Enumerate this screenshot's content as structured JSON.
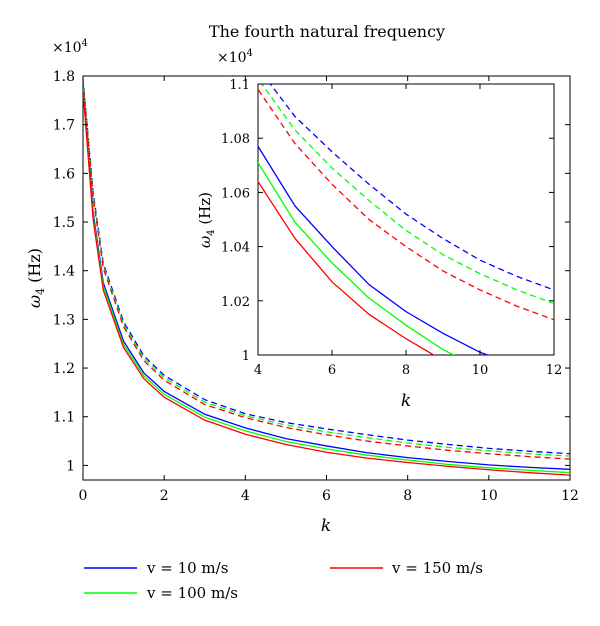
{
  "chart_data": {
    "type": "line",
    "title": "The fourth natural frequency",
    "scale_note": "×10^4",
    "xlabel": "k",
    "ylabel": "ω4 (Hz)",
    "xlim": [
      0,
      12
    ],
    "ylim": [
      0.97,
      1.8
    ],
    "xticks": [
      "0",
      "2",
      "4",
      "6",
      "8",
      "10",
      "12"
    ],
    "yticks": [
      "1",
      "1.1",
      "1.2",
      "1.3",
      "1.4",
      "1.5",
      "1.6",
      "1.7",
      "1.8"
    ],
    "grid": false,
    "legend": [
      {
        "label": "v = 10 m/s",
        "color": "#0000ff"
      },
      {
        "label": "v = 100 m/s",
        "color": "#00ff00"
      },
      {
        "label": "v = 150 m/s",
        "color": "#ff0000"
      }
    ],
    "series": [
      {
        "name": "v = 10 m/s",
        "color": "#0000ff",
        "style": "solid",
        "x": [
          0,
          0.25,
          0.5,
          1,
          1.5,
          2,
          3,
          4,
          5,
          6,
          7,
          8,
          9,
          10,
          11,
          12
        ],
        "y": [
          1.78,
          1.52,
          1.375,
          1.255,
          1.19,
          1.152,
          1.105,
          1.077,
          1.055,
          1.04,
          1.026,
          1.016,
          1.008,
          1.001,
          0.996,
          0.992
        ]
      },
      {
        "name": "v = 100 m/s",
        "color": "#00ff00",
        "style": "solid",
        "x": [
          0,
          0.25,
          0.5,
          1,
          1.5,
          2,
          3,
          4,
          5,
          6,
          7,
          8,
          9,
          10,
          11,
          12
        ],
        "y": [
          1.775,
          1.512,
          1.368,
          1.248,
          1.184,
          1.146,
          1.099,
          1.071,
          1.049,
          1.034,
          1.021,
          1.011,
          1.002,
          0.995,
          0.99,
          0.985
        ]
      },
      {
        "name": "v = 150 m/s",
        "color": "#ff0000",
        "style": "solid",
        "x": [
          0,
          0.25,
          0.5,
          1,
          1.5,
          2,
          3,
          4,
          5,
          6,
          7,
          8,
          9,
          10,
          11,
          12
        ],
        "y": [
          1.77,
          1.505,
          1.36,
          1.242,
          1.178,
          1.14,
          1.093,
          1.064,
          1.043,
          1.027,
          1.015,
          1.006,
          0.998,
          0.991,
          0.985,
          0.98
        ]
      },
      {
        "name": "",
        "color": "#0000ff",
        "style": "dashed",
        "x": [
          0,
          0.25,
          0.5,
          1,
          1.5,
          2,
          3,
          4,
          5,
          6,
          7,
          8,
          9,
          10,
          11,
          12
        ],
        "y": [
          1.795,
          1.56,
          1.415,
          1.295,
          1.225,
          1.185,
          1.135,
          1.106,
          1.088,
          1.075,
          1.063,
          1.052,
          1.043,
          1.035,
          1.029,
          1.024
        ]
      },
      {
        "name": "",
        "color": "#00ff00",
        "style": "dashed",
        "x": [
          0,
          0.25,
          0.5,
          1,
          1.5,
          2,
          3,
          4,
          5,
          6,
          7,
          8,
          9,
          10,
          11,
          12
        ],
        "y": [
          1.792,
          1.555,
          1.41,
          1.29,
          1.22,
          1.18,
          1.13,
          1.102,
          1.083,
          1.069,
          1.057,
          1.046,
          1.037,
          1.03,
          1.024,
          1.019
        ]
      },
      {
        "name": "",
        "color": "#ff0000",
        "style": "dashed",
        "x": [
          0,
          0.25,
          0.5,
          1,
          1.5,
          2,
          3,
          4,
          5,
          6,
          7,
          8,
          9,
          10,
          11,
          12
        ],
        "y": [
          1.789,
          1.55,
          1.405,
          1.285,
          1.215,
          1.175,
          1.125,
          1.098,
          1.078,
          1.063,
          1.05,
          1.04,
          1.031,
          1.024,
          1.018,
          1.013
        ]
      }
    ],
    "inset": {
      "xlabel": "k",
      "ylabel": "ω4 (Hz)",
      "scale_note": "×10^4",
      "xlim": [
        4,
        12
      ],
      "ylim": [
        1.0,
        1.1
      ],
      "xticks": [
        "4",
        "6",
        "8",
        "10",
        "12"
      ],
      "yticks": [
        "1",
        "1.02",
        "1.04",
        "1.06",
        "1.08",
        "1.1"
      ]
    }
  }
}
